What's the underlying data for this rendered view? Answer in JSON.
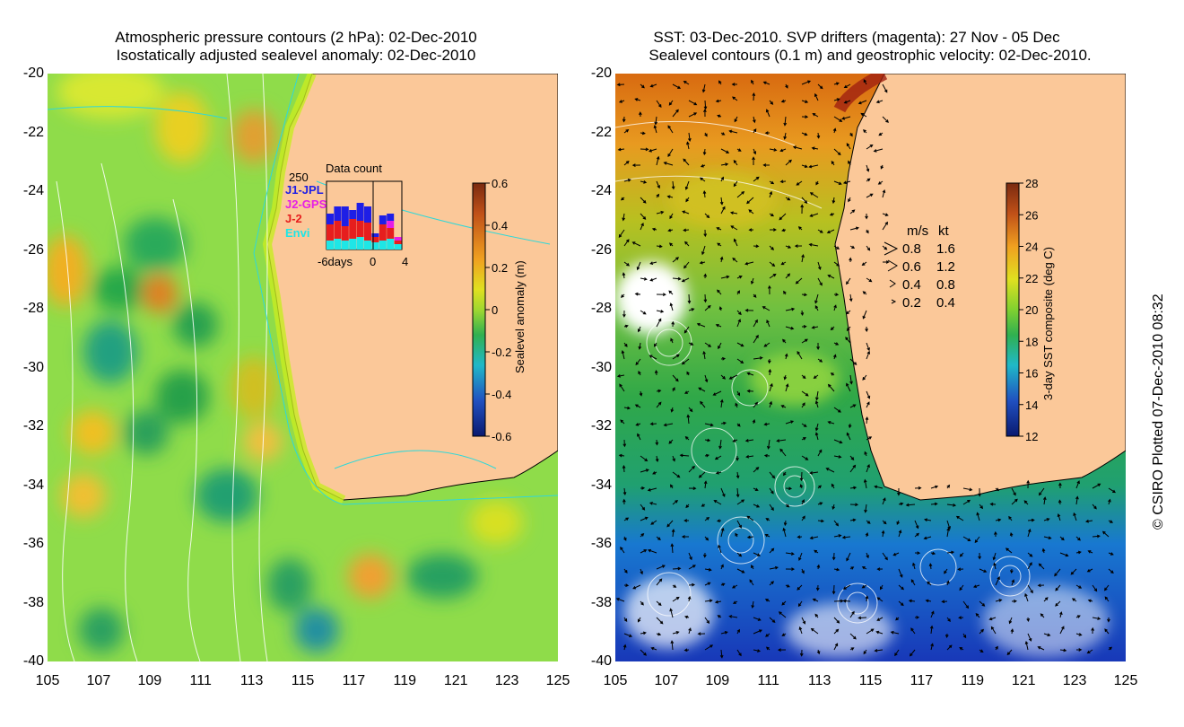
{
  "left_panel": {
    "title_line1": "Atmospheric pressure contours (2 hPa): 02-Dec-2010",
    "title_line2": "Isostatically adjusted sealevel anomaly: 02-Dec-2010",
    "colorbar": {
      "label": "Sealevel anomaly (m)",
      "ticks": [
        "0.6",
        "0.4",
        "0.2",
        "0",
        "-0.2",
        "-0.4",
        "-0.6"
      ]
    },
    "data_count": {
      "title": "Data count",
      "max_label": "250",
      "missions": [
        {
          "name": "J1-JPL",
          "color": "#1e1ee6"
        },
        {
          "name": "J2-GPS",
          "color": "#e61ee6"
        },
        {
          "name": "J-2",
          "color": "#e61e1e"
        },
        {
          "name": "Envi",
          "color": "#1ee6e6"
        }
      ],
      "x_ticks": [
        "-6days",
        "0",
        "4"
      ]
    }
  },
  "right_panel": {
    "title_line1": "SST: 03-Dec-2010. SVP drifters (magenta): 27 Nov - 05 Dec",
    "title_line2": "Sealevel contours (0.1 m) and geostrophic velocity: 02-Dec-2010.",
    "colorbar": {
      "label": "3-day SST composite (deg C)",
      "ticks": [
        "28",
        "26",
        "24",
        "22",
        "20",
        "18",
        "16",
        "14",
        "12"
      ]
    },
    "velocity_legend": {
      "header_ms": "m/s",
      "header_kt": "kt",
      "rows": [
        {
          "ms": "0.8",
          "kt": "1.6"
        },
        {
          "ms": "0.6",
          "kt": "1.2"
        },
        {
          "ms": "0.4",
          "kt": "0.8"
        },
        {
          "ms": "0.2",
          "kt": "0.4"
        }
      ]
    }
  },
  "axes": {
    "lat_ticks": [
      "-20",
      "-22",
      "-24",
      "-26",
      "-28",
      "-30",
      "-32",
      "-34",
      "-36",
      "-38",
      "-40"
    ],
    "lon_ticks": [
      "105",
      "107",
      "109",
      "111",
      "113",
      "115",
      "117",
      "119",
      "121",
      "123",
      "125"
    ]
  },
  "copyright": "© CSIRO Plotted 07-Dec-2010 08:32",
  "colors": {
    "land": "#fbc899",
    "coast": "#000000"
  }
}
